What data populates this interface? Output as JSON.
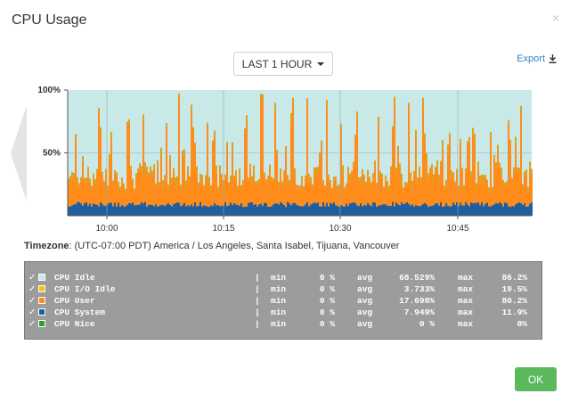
{
  "header": {
    "title": "CPU Usage",
    "close_glyph": "×"
  },
  "toolbar": {
    "range_label": "LAST 1 HOUR",
    "export_label": "Export"
  },
  "chart_data": {
    "type": "area",
    "stacked": true,
    "x_ticks": [
      "10:00",
      "10:15",
      "10:30",
      "10:45"
    ],
    "y_ticks": [
      "100%",
      "50%"
    ],
    "ylim": [
      0,
      100
    ],
    "series": [
      {
        "name": "CPU Idle",
        "color": "#c9e8e8"
      },
      {
        "name": "CPU I/O Idle",
        "color": "#f5a623"
      },
      {
        "name": "CPU User",
        "color": "#ff8c1a"
      },
      {
        "name": "CPU System",
        "color": "#1f5fa0"
      },
      {
        "name": "CPU Nice",
        "color": "#2ca02c"
      }
    ]
  },
  "timezone": {
    "label": "Timezone",
    "value": ": (UTC-07:00 PDT) America / Los Angeles, Santa Isabel, Tijuana, Vancouver"
  },
  "legend": {
    "check": "✓",
    "rows": [
      {
        "name": "CPU Idle",
        "color": "#c9e8e8",
        "pipe": "|",
        "min_label": "min",
        "min": "0 %",
        "avg_label": "avg",
        "avg": "68.529%",
        "max_label": "max",
        "max": "86.2%"
      },
      {
        "name": "CPU I/O Idle",
        "color": "#f5c211",
        "pipe": "|",
        "min_label": "min",
        "min": "0 %",
        "avg_label": "avg",
        "avg": "3.733%",
        "max_label": "max",
        "max": "19.5%"
      },
      {
        "name": "CPU User",
        "color": "#ff8c1a",
        "pipe": "|",
        "min_label": "min",
        "min": "0 %",
        "avg_label": "avg",
        "avg": "17.698%",
        "max_label": "max",
        "max": "80.2%"
      },
      {
        "name": "CPU System",
        "color": "#1f5fa0",
        "pipe": "|",
        "min_label": "min",
        "min": "0 %",
        "avg_label": "avg",
        "avg": "7.949%",
        "max_label": "max",
        "max": "11.9%"
      },
      {
        "name": "CPU Nice",
        "color": "#2ca02c",
        "pipe": "|",
        "min_label": "min",
        "min": "0 %",
        "avg_label": "avg",
        "avg": "0 %",
        "max_label": "max",
        "max": "0%"
      }
    ]
  },
  "footer": {
    "ok_label": "OK"
  }
}
